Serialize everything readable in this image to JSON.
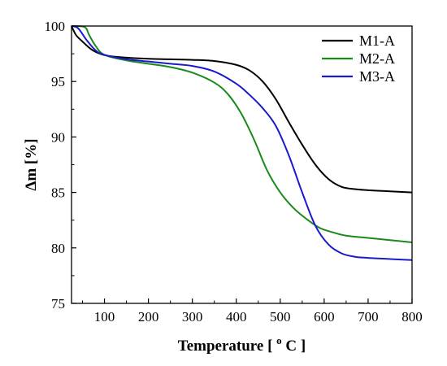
{
  "chart_data": {
    "type": "line",
    "xlabel": "Temperature",
    "xlabel_unit_sup": "o",
    "xlabel_unit": "C",
    "ylabel": "Δm [%]",
    "xlim": [
      25,
      800
    ],
    "ylim": [
      75,
      100
    ],
    "xticks": [
      100,
      200,
      300,
      400,
      500,
      600,
      700,
      800
    ],
    "yticks": [
      75,
      80,
      85,
      90,
      95,
      100
    ],
    "legend_position": "top-right",
    "grid": false,
    "series": [
      {
        "name": "M1-A",
        "color": "#000000",
        "points": [
          [
            25,
            100
          ],
          [
            35,
            99.2
          ],
          [
            50,
            98.6
          ],
          [
            70,
            97.9
          ],
          [
            90,
            97.5
          ],
          [
            110,
            97.3
          ],
          [
            150,
            97.15
          ],
          [
            200,
            97.05
          ],
          [
            250,
            97.0
          ],
          [
            300,
            96.95
          ],
          [
            350,
            96.85
          ],
          [
            400,
            96.5
          ],
          [
            430,
            96.0
          ],
          [
            460,
            95.0
          ],
          [
            490,
            93.4
          ],
          [
            520,
            91.3
          ],
          [
            550,
            89.3
          ],
          [
            580,
            87.5
          ],
          [
            610,
            86.2
          ],
          [
            640,
            85.5
          ],
          [
            670,
            85.3
          ],
          [
            700,
            85.2
          ],
          [
            750,
            85.1
          ],
          [
            800,
            85.0
          ]
        ]
      },
      {
        "name": "M2-A",
        "color": "#1a8a1a",
        "points": [
          [
            25,
            100
          ],
          [
            55,
            99.9
          ],
          [
            65,
            99.2
          ],
          [
            80,
            98.2
          ],
          [
            100,
            97.4
          ],
          [
            150,
            96.9
          ],
          [
            200,
            96.6
          ],
          [
            250,
            96.3
          ],
          [
            300,
            95.8
          ],
          [
            350,
            94.9
          ],
          [
            380,
            93.9
          ],
          [
            410,
            92.2
          ],
          [
            440,
            89.8
          ],
          [
            470,
            87.0
          ],
          [
            500,
            85.0
          ],
          [
            530,
            83.6
          ],
          [
            560,
            82.6
          ],
          [
            590,
            81.8
          ],
          [
            620,
            81.4
          ],
          [
            650,
            81.1
          ],
          [
            700,
            80.9
          ],
          [
            750,
            80.7
          ],
          [
            800,
            80.5
          ]
        ]
      },
      {
        "name": "M3-A",
        "color": "#1a1acc",
        "points": [
          [
            25,
            100
          ],
          [
            40,
            99.8
          ],
          [
            60,
            98.7
          ],
          [
            80,
            97.8
          ],
          [
            100,
            97.4
          ],
          [
            150,
            97.0
          ],
          [
            200,
            96.8
          ],
          [
            250,
            96.6
          ],
          [
            300,
            96.4
          ],
          [
            350,
            95.9
          ],
          [
            400,
            94.8
          ],
          [
            430,
            93.8
          ],
          [
            460,
            92.6
          ],
          [
            490,
            91.0
          ],
          [
            520,
            88.3
          ],
          [
            550,
            85.0
          ],
          [
            580,
            82.0
          ],
          [
            610,
            80.3
          ],
          [
            640,
            79.5
          ],
          [
            670,
            79.2
          ],
          [
            700,
            79.1
          ],
          [
            750,
            79.0
          ],
          [
            800,
            78.9
          ]
        ]
      }
    ]
  }
}
